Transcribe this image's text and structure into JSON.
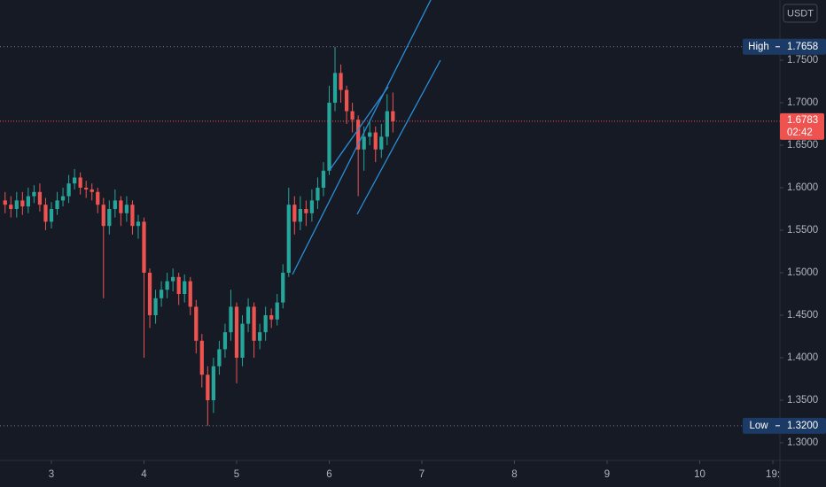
{
  "chart_data": {
    "type": "candlestick",
    "currency": "USDT",
    "x": [
      2.5,
      2.5625,
      2.625,
      2.6875,
      2.75,
      2.8125,
      2.875,
      2.9375,
      3.0,
      3.0625,
      3.125,
      3.1875,
      3.25,
      3.3125,
      3.375,
      3.4375,
      3.5,
      3.5625,
      3.625,
      3.6875,
      3.75,
      3.8125,
      3.875,
      3.9375,
      4.0,
      4.0625,
      4.125,
      4.1875,
      4.25,
      4.3125,
      4.375,
      4.4375,
      4.5,
      4.5625,
      4.625,
      4.6875,
      4.75,
      4.8125,
      4.875,
      4.9375,
      5.0,
      5.0625,
      5.125,
      5.1875,
      5.25,
      5.3125,
      5.375,
      5.4375,
      5.5,
      5.5625,
      5.625,
      5.6875,
      5.75,
      5.8125,
      5.875,
      5.9375,
      6.0,
      6.0625,
      6.125,
      6.1875,
      6.25,
      6.3125,
      6.375,
      6.4375,
      6.5,
      6.5625,
      6.625,
      6.6875
    ],
    "open": [
      1.585,
      1.58,
      1.575,
      1.585,
      1.578,
      1.59,
      1.595,
      1.58,
      1.56,
      1.575,
      1.585,
      1.59,
      1.605,
      1.612,
      1.6,
      1.598,
      1.595,
      1.58,
      1.555,
      1.575,
      1.585,
      1.57,
      1.58,
      1.555,
      1.56,
      1.5,
      1.45,
      1.47,
      1.48,
      1.49,
      1.495,
      1.475,
      1.49,
      1.46,
      1.42,
      1.38,
      1.35,
      1.39,
      1.41,
      1.43,
      1.46,
      1.4,
      1.44,
      1.46,
      1.42,
      1.43,
      1.45,
      1.445,
      1.465,
      1.5,
      1.58,
      1.56,
      1.575,
      1.57,
      1.585,
      1.6,
      1.62,
      1.7,
      1.735,
      1.715,
      1.69,
      1.68,
      1.645,
      1.66,
      1.665,
      1.645,
      1.66,
      1.69
    ],
    "high": [
      1.595,
      1.59,
      1.595,
      1.595,
      1.6,
      1.603,
      1.605,
      1.588,
      1.583,
      1.595,
      1.6,
      1.615,
      1.622,
      1.618,
      1.608,
      1.605,
      1.6,
      1.588,
      1.585,
      1.598,
      1.59,
      1.59,
      1.585,
      1.568,
      1.565,
      1.505,
      1.48,
      1.49,
      1.5,
      1.505,
      1.5,
      1.498,
      1.495,
      1.468,
      1.428,
      1.39,
      1.4,
      1.42,
      1.44,
      1.48,
      1.465,
      1.45,
      1.47,
      1.465,
      1.44,
      1.46,
      1.458,
      1.475,
      1.51,
      1.6,
      1.59,
      1.59,
      1.585,
      1.598,
      1.612,
      1.63,
      1.72,
      1.7658,
      1.745,
      1.72,
      1.7,
      1.685,
      1.672,
      1.68,
      1.672,
      1.675,
      1.71,
      1.712
    ],
    "low": [
      1.57,
      1.565,
      1.565,
      1.568,
      1.57,
      1.582,
      1.572,
      1.55,
      1.552,
      1.568,
      1.578,
      1.582,
      1.598,
      1.592,
      1.588,
      1.585,
      1.57,
      1.47,
      1.545,
      1.565,
      1.555,
      1.56,
      1.545,
      1.54,
      1.4,
      1.435,
      1.44,
      1.46,
      1.47,
      1.478,
      1.462,
      1.465,
      1.45,
      1.405,
      1.365,
      1.32,
      1.335,
      1.38,
      1.4,
      1.42,
      1.37,
      1.39,
      1.43,
      1.4,
      1.41,
      1.42,
      1.435,
      1.438,
      1.458,
      1.495,
      1.545,
      1.55,
      1.555,
      1.56,
      1.575,
      1.59,
      1.615,
      1.69,
      1.7,
      1.675,
      1.665,
      1.59,
      1.62,
      1.65,
      1.63,
      1.635,
      1.65,
      1.665
    ],
    "close": [
      1.58,
      1.575,
      1.585,
      1.578,
      1.59,
      1.595,
      1.58,
      1.56,
      1.575,
      1.585,
      1.59,
      1.605,
      1.612,
      1.6,
      1.598,
      1.595,
      1.58,
      1.555,
      1.575,
      1.585,
      1.57,
      1.58,
      1.555,
      1.56,
      1.5,
      1.45,
      1.47,
      1.48,
      1.49,
      1.495,
      1.475,
      1.49,
      1.46,
      1.42,
      1.38,
      1.35,
      1.39,
      1.41,
      1.43,
      1.46,
      1.4,
      1.44,
      1.46,
      1.42,
      1.43,
      1.45,
      1.445,
      1.465,
      1.5,
      1.58,
      1.56,
      1.575,
      1.57,
      1.585,
      1.6,
      1.62,
      1.7,
      1.735,
      1.715,
      1.69,
      1.68,
      1.645,
      1.66,
      1.665,
      1.645,
      1.66,
      1.69,
      1.6783
    ],
    "xlim": [
      2.445,
      10.866
    ],
    "xticks": [
      3,
      4,
      5,
      6,
      7,
      8,
      9,
      10,
      {
        "value": 10.79,
        "label": "19:"
      }
    ],
    "ylim": [
      1.2792,
      1.8208
    ],
    "yticks": [
      {
        "value": 1.3,
        "label": "1.3000"
      },
      {
        "value": 1.35,
        "label": "1.3500"
      },
      {
        "value": 1.4,
        "label": "1.4000"
      },
      {
        "value": 1.45,
        "label": "1.4500"
      },
      {
        "value": 1.5,
        "label": "1.5000"
      },
      {
        "value": 1.55,
        "label": "1.5500"
      },
      {
        "value": 1.6,
        "label": "1.6000"
      },
      {
        "value": 1.65,
        "label": "1.6500"
      },
      {
        "value": 1.7,
        "label": "1.7000"
      },
      {
        "value": 1.75,
        "label": "1.7500"
      }
    ],
    "up_color": "#26a69a",
    "down_color": "#ef5350",
    "high_marker": {
      "label": "High",
      "value": 1.7658
    },
    "low_marker": {
      "label": "Low",
      "value": 1.32,
      "value_label": "1.3200"
    },
    "last_price": {
      "value": 1.6783,
      "countdown": "02:42"
    }
  }
}
